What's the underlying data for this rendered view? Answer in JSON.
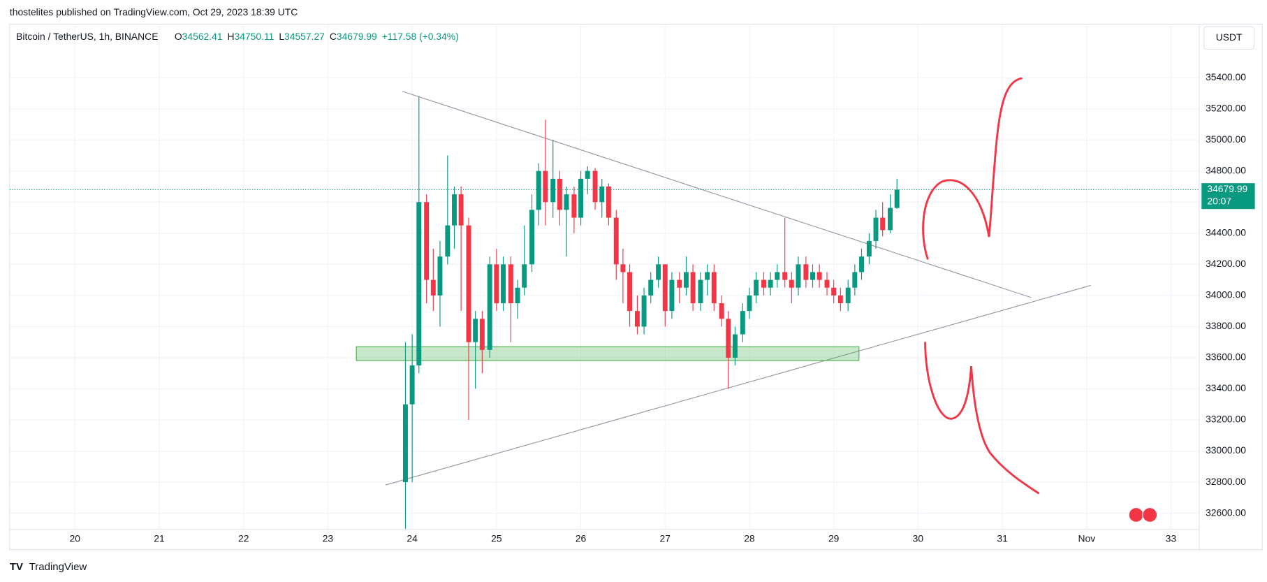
{
  "header": {
    "published": "thostelites published on TradingView.com, Oct 29, 2023 18:39 UTC",
    "currency": "USDT",
    "ohlc_labels": [
      "O",
      "H",
      "L",
      "C"
    ],
    "change": "+117.58 (+0.34%)",
    "countdown": "20:07",
    "brand": "TradingView"
  },
  "chart_data": {
    "type": "candlestick",
    "title": "Bitcoin / TetherUS, 1h, BINANCE",
    "x": [
      23.92,
      24,
      24.08,
      24.17,
      24.25,
      24.33,
      24.42,
      24.5,
      24.58,
      24.67,
      24.75,
      24.83,
      24.92,
      25,
      25.08,
      25.17,
      25.25,
      25.33,
      25.42,
      25.5,
      25.58,
      25.67,
      25.75,
      25.83,
      25.92,
      26,
      26.08,
      26.17,
      26.25,
      26.33,
      26.42,
      26.5,
      26.58,
      26.67,
      26.75,
      26.83,
      26.92,
      27,
      27.08,
      27.17,
      27.25,
      27.33,
      27.42,
      27.5,
      27.58,
      27.67,
      27.75,
      27.83,
      27.92,
      28,
      28.08,
      28.17,
      28.25,
      28.33,
      28.42,
      28.5,
      28.58,
      28.67,
      28.75,
      28.83,
      28.92,
      29,
      29.08,
      29.17,
      29.25,
      29.33,
      29.42,
      29.5,
      29.58,
      29.67,
      29.75
    ],
    "open": [
      32800,
      33300,
      33550,
      34600,
      34100,
      34000,
      34250,
      34450,
      34650,
      34450,
      33700,
      33850,
      33650,
      34200,
      33950,
      34200,
      33950,
      34050,
      34200,
      34550,
      34800,
      34600,
      34750,
      34550,
      34650,
      34500,
      34750,
      34800,
      34600,
      34700,
      34500,
      34200,
      34150,
      33900,
      33800,
      34000,
      34100,
      34200,
      33900,
      34100,
      34050,
      34150,
      33950,
      34100,
      34150,
      33950,
      33850,
      33600,
      33750,
      33900,
      34000,
      34100,
      34050,
      34100,
      34150,
      34100,
      34050,
      34200,
      34100,
      34150,
      34100,
      34050,
      34000,
      33950,
      34050,
      34150,
      34250,
      34350,
      34500,
      34420,
      34562.41
    ],
    "high": [
      33700,
      33750,
      35280,
      34650,
      34300,
      34350,
      34900,
      34700,
      34700,
      34500,
      33900,
      33900,
      34250,
      34300,
      34250,
      34250,
      34100,
      34450,
      34650,
      34850,
      35130,
      35000,
      34800,
      34700,
      34700,
      34800,
      34830,
      34820,
      34750,
      34720,
      34550,
      34300,
      34200,
      34000,
      34050,
      34150,
      34250,
      34200,
      34150,
      34150,
      34250,
      34200,
      34150,
      34200,
      34200,
      34000,
      33900,
      33800,
      33950,
      34050,
      34150,
      34150,
      34150,
      34200,
      34500,
      34150,
      34250,
      34250,
      34200,
      34200,
      34150,
      34100,
      34050,
      34100,
      34200,
      34300,
      34400,
      34550,
      34600,
      34650,
      34750.11
    ],
    "low": [
      32500,
      32800,
      33500,
      33950,
      33900,
      33800,
      34200,
      34300,
      33900,
      33200,
      33400,
      33500,
      33600,
      33900,
      33900,
      33700,
      33850,
      34000,
      34150,
      34450,
      34450,
      34500,
      34450,
      34250,
      34400,
      34450,
      34650,
      34550,
      34500,
      34450,
      34100,
      33950,
      33800,
      33750,
      33750,
      33950,
      34050,
      33800,
      33850,
      33950,
      34000,
      33900,
      33900,
      34000,
      33900,
      33800,
      33400,
      33550,
      33700,
      33850,
      33950,
      34000,
      34000,
      34050,
      34050,
      33950,
      34000,
      34050,
      34050,
      34050,
      34000,
      33950,
      33900,
      33900,
      34000,
      34100,
      34200,
      34300,
      34380,
      34400,
      34557.27
    ],
    "close": [
      33300,
      33550,
      34600,
      34100,
      34000,
      34250,
      34450,
      34650,
      34450,
      33700,
      33850,
      33650,
      34200,
      33950,
      34200,
      33950,
      34050,
      34200,
      34550,
      34800,
      34600,
      34750,
      34550,
      34650,
      34500,
      34750,
      34800,
      34600,
      34700,
      34500,
      34200,
      34150,
      33900,
      33800,
      34000,
      34100,
      34200,
      33900,
      34100,
      34050,
      34150,
      33950,
      34100,
      34150,
      33950,
      33850,
      33600,
      33750,
      33900,
      34000,
      34100,
      34050,
      34100,
      34150,
      34100,
      34050,
      34200,
      34100,
      34150,
      34100,
      34050,
      34000,
      33950,
      34050,
      34150,
      34250,
      34350,
      34500,
      34420,
      34562.41,
      34679.99
    ],
    "up_color": "#089981",
    "down_color": "#f23645",
    "grid": true,
    "xlim": [
      19.226,
      33.334
    ],
    "xticks": [
      20,
      21,
      22,
      23,
      24,
      25,
      26,
      27,
      28,
      29,
      30,
      31,
      {
        "value": 32,
        "label": "Nov"
      },
      33
    ],
    "ylim": [
      32496,
      35743
    ],
    "yticks": [
      {
        "value": 32600,
        "label": "32600.00"
      },
      {
        "value": 32800,
        "label": "32800.00"
      },
      {
        "value": 33000,
        "label": "33000.00"
      },
      {
        "value": 33200,
        "label": "33200.00"
      },
      {
        "value": 33400,
        "label": "33400.00"
      },
      {
        "value": 33600,
        "label": "33600.00"
      },
      {
        "value": 33800,
        "label": "33800.00"
      },
      {
        "value": 34000,
        "label": "34000.00"
      },
      {
        "value": 34200,
        "label": "34200.00"
      },
      {
        "value": 34400,
        "label": "34400.00"
      },
      {
        "value": 34600,
        "label": "34600.00"
      },
      {
        "value": 34800,
        "label": "34800.00"
      },
      {
        "value": 35000,
        "label": "35000.00"
      },
      {
        "value": 35200,
        "label": "35200.00"
      },
      {
        "value": 35400,
        "label": "35400.00"
      }
    ]
  }
}
